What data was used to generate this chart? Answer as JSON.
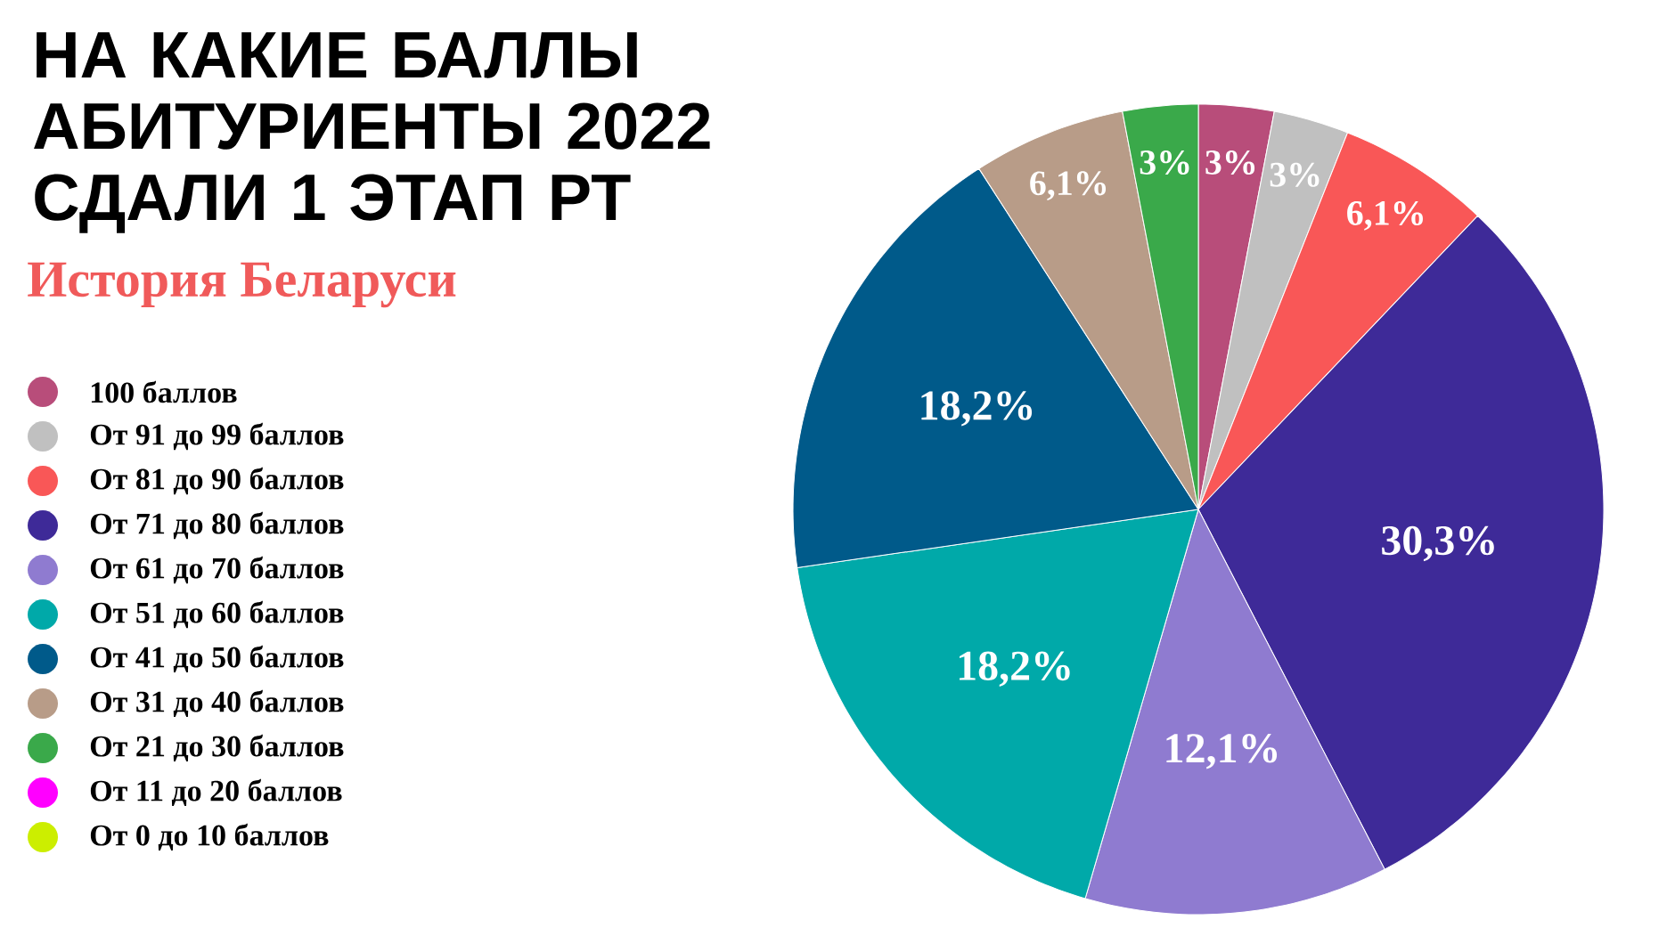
{
  "chart_data": {
    "type": "pie",
    "title": "НА КАКИЕ БАЛЛЫ АБИТУРИЕНТЫ 2022 СДАЛИ 1 ЭТАП РТ",
    "subtitle": "История Беларуси",
    "categories": [
      "100 баллов",
      "От 91 до 99 баллов",
      "От 81 до 90 баллов",
      "От 71 до 80 баллов",
      "От 61 до 70 баллов",
      "От 51 до 60 баллов",
      "От 41 до 50 баллов",
      "От 31 до 40 баллов",
      "От 21 до 30 баллов",
      "От 11 до 20 баллов",
      "От 0 до 10 баллов"
    ],
    "values": [
      3,
      3,
      6.1,
      30.3,
      12.1,
      18.2,
      18.2,
      6.1,
      3,
      0,
      0
    ],
    "value_labels": [
      "3%",
      "3%",
      "6,1%",
      "30,3%",
      "12,1%",
      "18,2%",
      "18,2%",
      "6,1%",
      "3%",
      null,
      null
    ],
    "colors": [
      "#b84d7a",
      "#c0c0c0",
      "#f95757",
      "#3e2a98",
      "#8f7bd0",
      "#00a9a9",
      "#005a8a",
      "#b89c88",
      "#3aa94a",
      "#ff00ff",
      "#ccee00"
    ],
    "legend": "left"
  }
}
